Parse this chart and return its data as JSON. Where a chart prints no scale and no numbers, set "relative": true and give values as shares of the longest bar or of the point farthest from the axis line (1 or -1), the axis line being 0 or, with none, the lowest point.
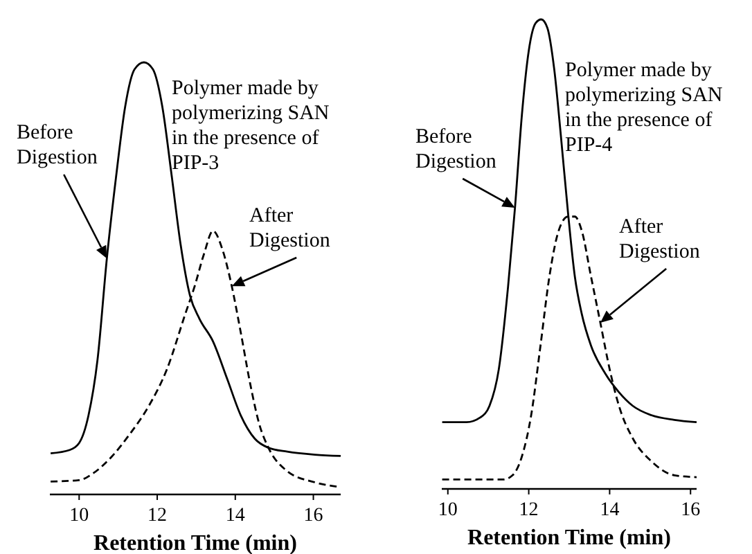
{
  "chart_data": [
    {
      "type": "line",
      "relative": true,
      "xlabel": "Retention Time (min)",
      "xlim": [
        9.25,
        16.7
      ],
      "xticks": [
        10,
        12,
        14,
        16
      ],
      "annotations": [
        "Polymer made by\npolymerizing SAN\nin the presence of\nPIP-3"
      ],
      "tick_labels": "x",
      "series": [
        {
          "name": "Before Digestion",
          "color": "#000000",
          "line_style": "solid",
          "x": [
            9.27,
            9.76,
            10,
            10.24,
            10.47,
            10.71,
            10.95,
            11.18,
            11.42,
            11.66,
            11.89,
            12.13,
            12.37,
            12.6,
            12.84,
            13.08,
            13.43,
            13.79,
            14.14,
            14.5,
            14.85,
            15.33,
            16.04,
            16.7
          ],
          "values": [
            0.095,
            0.103,
            0.119,
            0.183,
            0.311,
            0.546,
            0.738,
            0.898,
            0.984,
            1,
            0.984,
            0.898,
            0.738,
            0.578,
            0.46,
            0.407,
            0.354,
            0.268,
            0.183,
            0.129,
            0.108,
            0.099,
            0.092,
            0.089
          ]
        },
        {
          "name": "After Digestion",
          "color": "#000000",
          "line_style": "dashed",
          "x": [
            9.27,
            10,
            10.36,
            10.83,
            11.3,
            11.78,
            12.25,
            12.72,
            12.96,
            13.2,
            13.43,
            13.67,
            13.91,
            14.14,
            14.38,
            14.62,
            14.85,
            15.33,
            16.04,
            16.7
          ],
          "values": [
            0.03,
            0.033,
            0.049,
            0.087,
            0.14,
            0.204,
            0.29,
            0.418,
            0.482,
            0.557,
            0.61,
            0.567,
            0.482,
            0.375,
            0.257,
            0.161,
            0.108,
            0.054,
            0.028,
            0.017
          ]
        }
      ]
    },
    {
      "type": "line",
      "relative": true,
      "xlabel": "Retention Time (min)",
      "xlim": [
        9.85,
        16.15
      ],
      "xticks": [
        10,
        12,
        14,
        16
      ],
      "annotations": [
        "Polymer made by\npolymerizing SAN\nin the presence of\nPIP-4"
      ],
      "tick_labels": "x",
      "series": [
        {
          "name": "Before Digestion",
          "color": "#000000",
          "line_style": "solid",
          "x": [
            9.86,
            10.46,
            10.8,
            11.03,
            11.26,
            11.49,
            11.66,
            11.83,
            12,
            12.17,
            12.31,
            12.46,
            12.63,
            12.8,
            12.97,
            13.14,
            13.31,
            13.54,
            13.89,
            14.23,
            14.57,
            15.03,
            15.6,
            16.15
          ],
          "values": [
            0.142,
            0.142,
            0.152,
            0.177,
            0.255,
            0.432,
            0.599,
            0.796,
            0.933,
            0.992,
            1,
            0.982,
            0.894,
            0.747,
            0.589,
            0.452,
            0.373,
            0.305,
            0.246,
            0.206,
            0.177,
            0.157,
            0.147,
            0.142
          ]
        },
        {
          "name": "After Digestion",
          "color": "#000000",
          "line_style": "dashed",
          "x": [
            9.86,
            11.37,
            11.6,
            11.83,
            12.06,
            12.29,
            12.51,
            12.74,
            12.97,
            13.14,
            13.31,
            13.54,
            13.77,
            14,
            14.23,
            14.57,
            15.03,
            15.6,
            16.15
          ],
          "values": [
            0.02,
            0.02,
            0.029,
            0.069,
            0.157,
            0.305,
            0.452,
            0.55,
            0.58,
            0.58,
            0.55,
            0.452,
            0.354,
            0.255,
            0.177,
            0.108,
            0.059,
            0.029,
            0.025
          ]
        }
      ]
    }
  ]
}
